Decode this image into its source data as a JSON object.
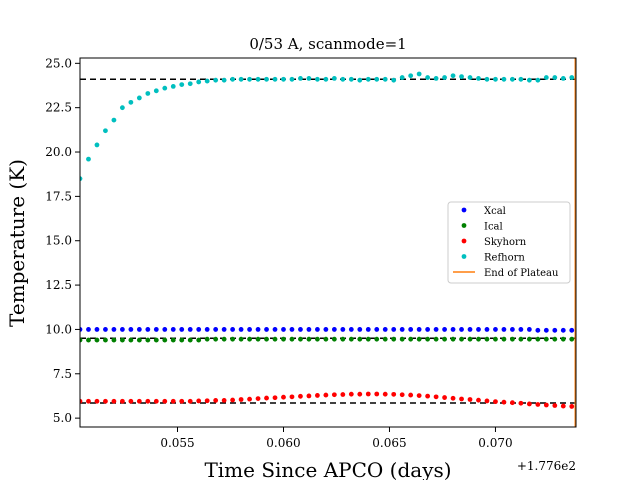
{
  "chart_data": {
    "type": "scatter",
    "title": "0/53 A, scanmode=1",
    "xlabel": "Time Since APCO (days)",
    "ylabel": "Temperature (K)",
    "x_offset_label": "+1.776e2",
    "xlim": [
      0.0504,
      0.0738
    ],
    "ylim": [
      4.5,
      25.3
    ],
    "x_ticks": [
      0.055,
      0.06,
      0.065,
      0.07
    ],
    "x_tick_labels": [
      "0.055",
      "0.060",
      "0.065",
      "0.070"
    ],
    "y_ticks": [
      5.0,
      7.5,
      10.0,
      12.5,
      15.0,
      17.5,
      20.0,
      22.5,
      25.0
    ],
    "y_tick_labels": [
      "5.0",
      "7.5",
      "10.0",
      "12.5",
      "15.0",
      "17.5",
      "20.0",
      "22.5",
      "25.0"
    ],
    "grid": false,
    "legend_position": "center-right",
    "x": [
      0.0504,
      0.0508,
      0.0512,
      0.0516,
      0.052,
      0.0524,
      0.0528,
      0.0532,
      0.0536,
      0.054,
      0.0544,
      0.0548,
      0.0552,
      0.0556,
      0.056,
      0.0564,
      0.0568,
      0.0572,
      0.0576,
      0.058,
      0.0584,
      0.0588,
      0.0592,
      0.0596,
      0.06,
      0.0604,
      0.0608,
      0.0612,
      0.0616,
      0.062,
      0.0624,
      0.0628,
      0.0632,
      0.0636,
      0.064,
      0.0644,
      0.0648,
      0.0652,
      0.0656,
      0.066,
      0.0664,
      0.0668,
      0.0672,
      0.0676,
      0.068,
      0.0684,
      0.0688,
      0.0692,
      0.0696,
      0.07,
      0.0704,
      0.0708,
      0.0712,
      0.0716,
      0.072,
      0.0724,
      0.0728,
      0.0732,
      0.0736
    ],
    "series": [
      {
        "name": "Xcal",
        "color": "#0000ff",
        "values": [
          10.0,
          10.0,
          10.0,
          10.0,
          10.0,
          10.0,
          10.0,
          10.0,
          10.0,
          10.0,
          10.0,
          10.0,
          10.0,
          10.0,
          10.0,
          10.0,
          10.0,
          10.0,
          10.0,
          10.0,
          10.0,
          10.0,
          10.0,
          10.0,
          10.0,
          10.0,
          10.0,
          10.0,
          10.0,
          10.0,
          10.0,
          10.0,
          10.0,
          10.0,
          10.0,
          10.0,
          10.0,
          10.0,
          10.0,
          10.0,
          10.0,
          10.0,
          10.0,
          10.0,
          10.0,
          10.0,
          10.0,
          10.0,
          10.0,
          10.0,
          10.0,
          10.0,
          10.0,
          10.0,
          9.95,
          9.95,
          9.95,
          9.95,
          9.95
        ]
      },
      {
        "name": "Ical",
        "color": "#008000",
        "values": [
          9.4,
          9.4,
          9.4,
          9.4,
          9.4,
          9.4,
          9.4,
          9.4,
          9.4,
          9.4,
          9.4,
          9.4,
          9.4,
          9.4,
          9.4,
          9.45,
          9.45,
          9.45,
          9.45,
          9.45,
          9.45,
          9.45,
          9.45,
          9.45,
          9.45,
          9.45,
          9.45,
          9.45,
          9.45,
          9.45,
          9.45,
          9.45,
          9.45,
          9.45,
          9.45,
          9.45,
          9.45,
          9.45,
          9.45,
          9.45,
          9.45,
          9.45,
          9.45,
          9.45,
          9.45,
          9.45,
          9.45,
          9.45,
          9.45,
          9.45,
          9.45,
          9.45,
          9.45,
          9.45,
          9.45,
          9.45,
          9.45,
          9.45,
          9.45
        ]
      },
      {
        "name": "Skyhorn",
        "color": "#ff0000",
        "values": [
          5.95,
          5.95,
          5.95,
          5.95,
          5.95,
          5.95,
          5.95,
          5.95,
          5.95,
          5.95,
          5.95,
          5.95,
          5.95,
          5.95,
          5.97,
          5.98,
          6.0,
          6.0,
          6.02,
          6.05,
          6.07,
          6.1,
          6.13,
          6.15,
          6.18,
          6.2,
          6.23,
          6.25,
          6.28,
          6.3,
          6.32,
          6.33,
          6.35,
          6.35,
          6.36,
          6.36,
          6.35,
          6.34,
          6.32,
          6.3,
          6.27,
          6.24,
          6.2,
          6.16,
          6.12,
          6.08,
          6.05,
          6.01,
          5.97,
          5.93,
          5.9,
          5.87,
          5.84,
          5.8,
          5.77,
          5.74,
          5.71,
          5.68,
          5.66
        ]
      },
      {
        "name": "Refhorn",
        "color": "#00bfbf",
        "values": [
          18.5,
          19.6,
          20.4,
          21.2,
          21.8,
          22.5,
          22.8,
          23.05,
          23.3,
          23.45,
          23.6,
          23.7,
          23.8,
          23.85,
          23.95,
          24.0,
          24.05,
          24.05,
          24.1,
          24.1,
          24.1,
          24.1,
          24.1,
          24.1,
          24.1,
          24.1,
          24.15,
          24.15,
          24.1,
          24.1,
          24.15,
          24.1,
          24.1,
          24.05,
          24.1,
          24.1,
          24.1,
          24.05,
          24.2,
          24.3,
          24.4,
          24.2,
          24.15,
          24.2,
          24.3,
          24.25,
          24.2,
          24.15,
          24.1,
          24.1,
          24.1,
          24.1,
          24.1,
          24.05,
          24.05,
          24.2,
          24.2,
          24.15,
          24.2
        ]
      }
    ],
    "reference_lines": [
      {
        "kind": "horizontal",
        "y": 24.1,
        "style": "dashed",
        "color": "#000000"
      },
      {
        "kind": "horizontal",
        "y": 9.5,
        "style": "dashed",
        "color": "#000000"
      },
      {
        "kind": "horizontal",
        "y": 5.85,
        "style": "dashed",
        "color": "#000000"
      }
    ],
    "end_of_plateau": {
      "name": "End of Plateau",
      "x": 0.0738,
      "color": "#ff7f0e"
    }
  }
}
